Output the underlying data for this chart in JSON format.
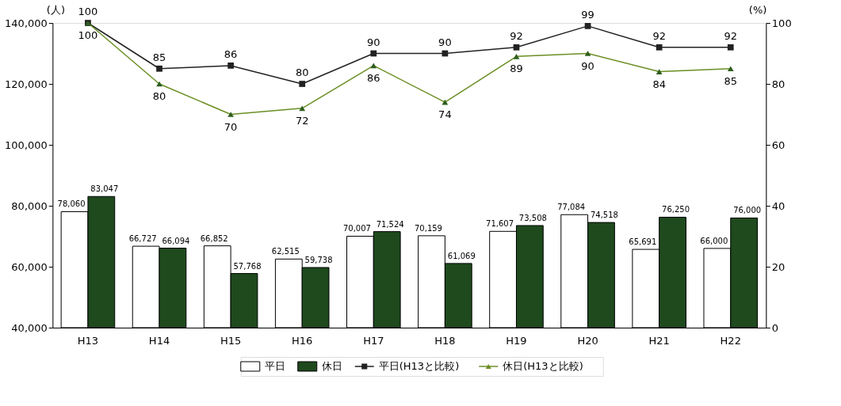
{
  "chart_data": {
    "type": "bar",
    "ylabel": "(人)",
    "y2label": "(%)",
    "categories": [
      "H13",
      "H14",
      "H15",
      "H16",
      "H17",
      "H18",
      "H19",
      "H20",
      "H21",
      "H22"
    ],
    "series": [
      {
        "name": "平日",
        "type": "bar",
        "color": "#ffffff",
        "values": [
          78060,
          66727,
          66852,
          62515,
          70007,
          70159,
          71607,
          77084,
          65691,
          66000
        ],
        "value_labels": [
          "78,060",
          "66,727",
          "66,852",
          "62,515",
          "70,007",
          "70,159",
          "71,607",
          "77,084",
          "65,691",
          "66,000"
        ]
      },
      {
        "name": "休日",
        "type": "bar",
        "color": "#1e4a1e",
        "values": [
          83047,
          66094,
          57768,
          59738,
          71524,
          61069,
          73508,
          74518,
          76250,
          76000
        ],
        "value_labels": [
          "83,047",
          "66,094",
          "57,768",
          "59,738",
          "71,524",
          "61,069",
          "73,508",
          "74,518",
          "76,250",
          "76,000"
        ]
      },
      {
        "name": "平日(H13と比較)",
        "type": "line",
        "axis": "y2",
        "marker": "square",
        "color": "#222222",
        "values": [
          100,
          85,
          86,
          80,
          90,
          90,
          92,
          99,
          92,
          92
        ],
        "value_labels": [
          "100",
          "85",
          "86",
          "80",
          "90",
          "90",
          "92",
          "99",
          "92",
          "92"
        ]
      },
      {
        "name": "休日(H13と比較)",
        "type": "line",
        "axis": "y2",
        "marker": "triangle",
        "color": "#6b8e23",
        "values": [
          100,
          80,
          70,
          72,
          86,
          74,
          89,
          90,
          84,
          85
        ],
        "value_labels": [
          "100",
          "80",
          "70",
          "72",
          "86",
          "74",
          "89",
          "90",
          "84",
          "85"
        ]
      }
    ],
    "ylim": [
      40000,
      140000
    ],
    "yticks": [
      {
        "value": 40000,
        "label": "40,000"
      },
      {
        "value": 60000,
        "label": "60,000"
      },
      {
        "value": 80000,
        "label": "80,000"
      },
      {
        "value": 100000,
        "label": "100,000"
      },
      {
        "value": 120000,
        "label": "120,000"
      },
      {
        "value": 140000,
        "label": "140,000"
      }
    ],
    "y2lim": [
      0,
      100
    ],
    "y2ticks": [
      0,
      20,
      40,
      60,
      80,
      100
    ],
    "grid": false,
    "legend": "bottom"
  }
}
